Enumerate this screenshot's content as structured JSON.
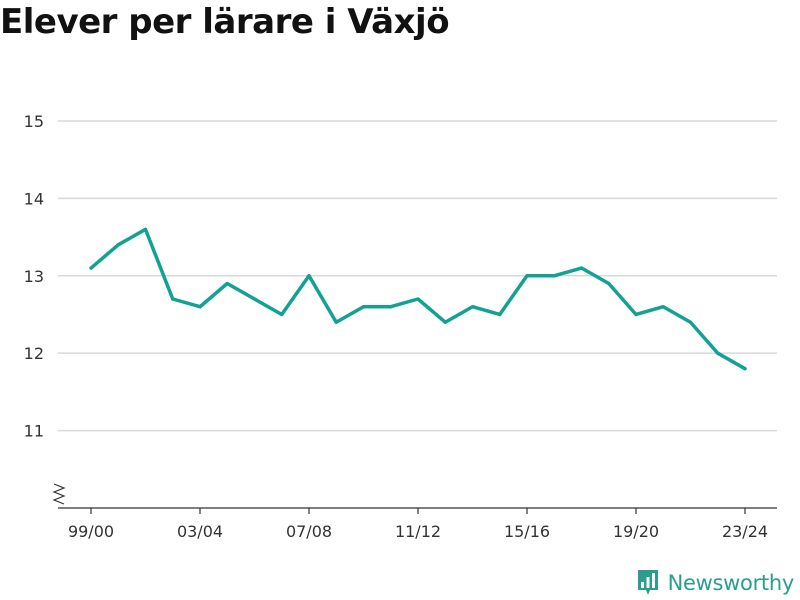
{
  "title": "Elever per lärare i Växjö",
  "brand": {
    "name": "Newsworthy",
    "icon": "newsworthy-logo-icon",
    "color": "#2a9d8f"
  },
  "chart_data": {
    "type": "line",
    "title": "Elever per lärare i Växjö",
    "xlabel": "",
    "ylabel": "",
    "x": [
      "99/00",
      "00/01",
      "01/02",
      "02/03",
      "03/04",
      "04/05",
      "05/06",
      "06/07",
      "07/08",
      "08/09",
      "09/10",
      "10/11",
      "11/12",
      "12/13",
      "13/14",
      "14/15",
      "15/16",
      "16/17",
      "17/18",
      "18/19",
      "19/20",
      "20/21",
      "21/22",
      "22/23",
      "23/24"
    ],
    "x_tick_labels": [
      "99/00",
      "03/04",
      "07/08",
      "11/12",
      "15/16",
      "19/20",
      "23/24"
    ],
    "series": [
      {
        "color": "#13a193",
        "values": [
          13.1,
          13.4,
          13.6,
          12.7,
          12.6,
          12.9,
          12.7,
          12.5,
          13.0,
          12.4,
          12.6,
          12.6,
          12.7,
          12.4,
          12.6,
          12.5,
          13.0,
          13.0,
          13.1,
          12.9,
          12.5,
          12.6,
          12.4,
          12.0,
          11.8
        ]
      }
    ],
    "yticks": [
      11,
      12,
      13,
      14,
      15
    ],
    "ylim": [
      10,
      15.4
    ],
    "grid": true,
    "axis_break": true,
    "legend": "none"
  }
}
